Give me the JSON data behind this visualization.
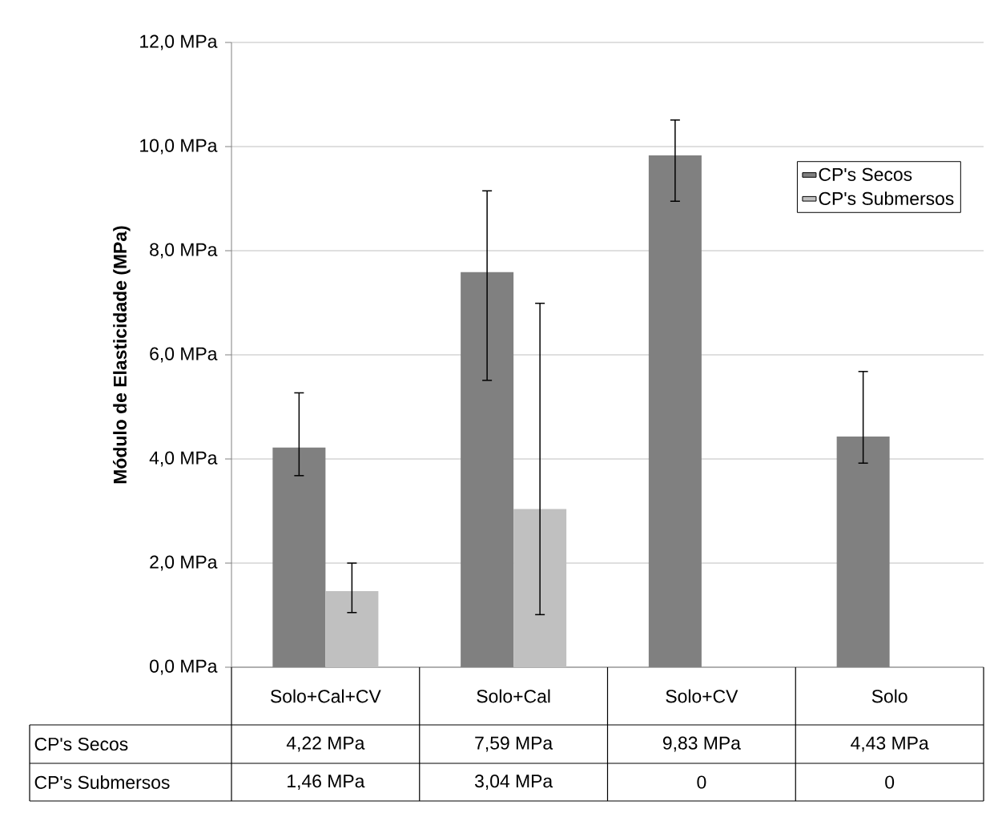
{
  "chart_data": {
    "type": "bar",
    "ylabel": "Módulo de Elasticidade (MPa)",
    "categories": [
      "Solo+Cal+CV",
      "Solo+Cal",
      "Solo+CV",
      "Solo"
    ],
    "series": [
      {
        "name": "CP's Secos",
        "color": "#808080",
        "values": [
          4.22,
          7.59,
          9.83,
          4.43
        ],
        "errors": [
          [
            3.68,
            5.27
          ],
          [
            5.51,
            9.15
          ],
          [
            8.95,
            10.51
          ],
          [
            3.92,
            5.68
          ]
        ],
        "value_labels": [
          "4,22 MPa",
          "7,59 MPa",
          "9,83 MPa",
          "4,43 MPa"
        ]
      },
      {
        "name": "CP's Submersos",
        "color": "#c0c0c0",
        "values": [
          1.46,
          3.04,
          0,
          0
        ],
        "errors": [
          [
            1.05,
            2.0
          ],
          [
            1.01,
            6.99
          ],
          null,
          null
        ],
        "value_labels": [
          "1,46 MPa",
          "3,04 MPa",
          "0",
          "0"
        ]
      }
    ],
    "ylim": [
      0,
      12
    ],
    "yticks": [
      {
        "value": 0,
        "label": "0,0 MPa"
      },
      {
        "value": 2,
        "label": "2,0 MPa"
      },
      {
        "value": 4,
        "label": "4,0 MPa"
      },
      {
        "value": 6,
        "label": "6,0 MPa"
      },
      {
        "value": 8,
        "label": "8,0 MPa"
      },
      {
        "value": 10,
        "label": "10,0 MPa"
      },
      {
        "value": 12,
        "label": "12,0 MPa"
      }
    ],
    "grid": "y",
    "legend": "top right"
  }
}
